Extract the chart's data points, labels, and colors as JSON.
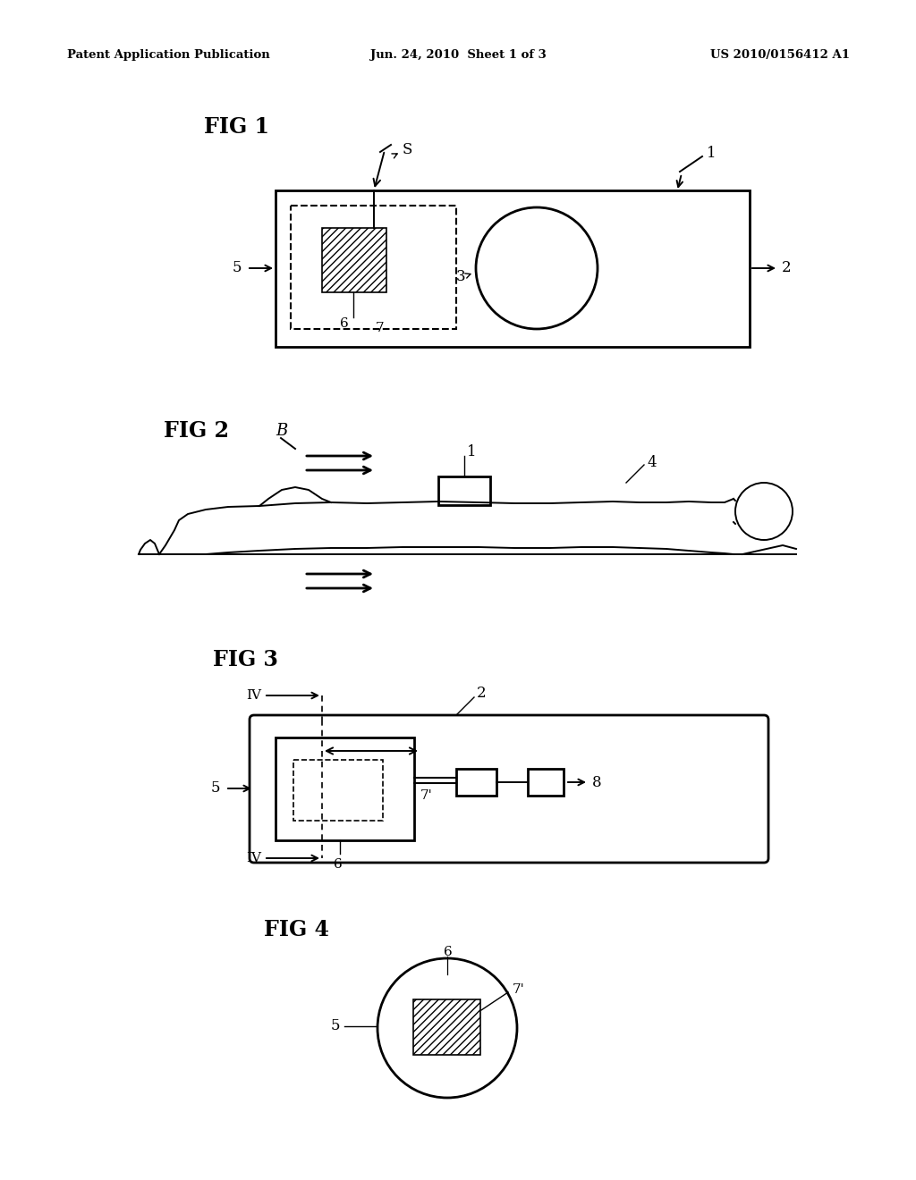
{
  "header_left": "Patent Application Publication",
  "header_center": "Jun. 24, 2010  Sheet 1 of 3",
  "header_right": "US 2010/0156412 A1",
  "bg": "#ffffff",
  "lc": "#000000"
}
